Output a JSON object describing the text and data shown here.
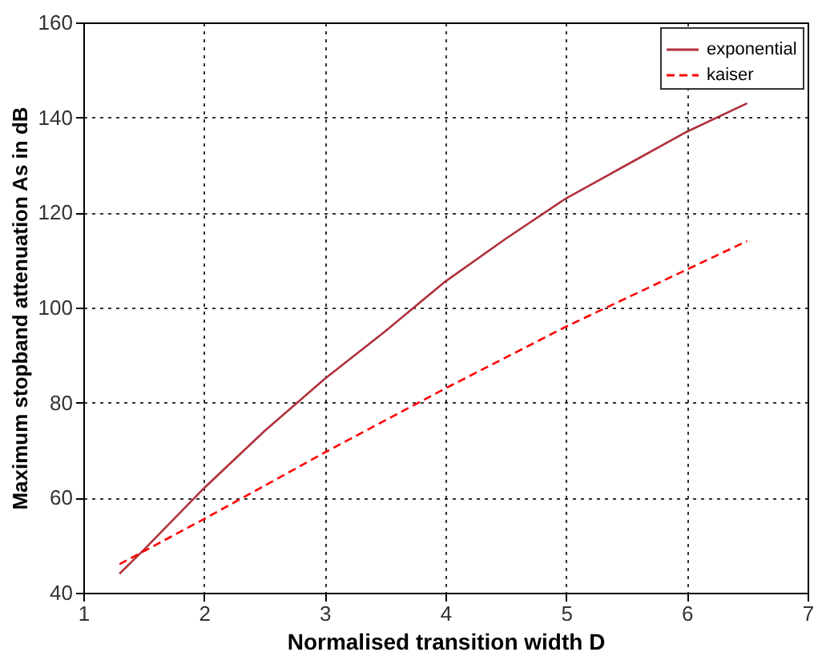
{
  "chart_data": {
    "type": "line",
    "xlabel": "Normalised transition width D",
    "ylabel": "Maximum stopband attenuation As in dB",
    "x": [
      1.3,
      1.5,
      2,
      2.5,
      3,
      3.5,
      4,
      4.5,
      5,
      5.5,
      6,
      6.5
    ],
    "series": [
      {
        "name": "exponential",
        "color": "#b0303c",
        "line_style": "solid",
        "values": [
          44,
          49,
          62,
          74,
          85,
          95,
          105.5,
          114.5,
          123,
          130,
          137,
          143
        ]
      },
      {
        "name": "kaiser",
        "color": "#ff0000",
        "line_style": "dashed",
        "x": [
          1.3,
          2,
          3,
          4,
          5,
          6,
          6.5
        ],
        "values": [
          46,
          55.5,
          69.5,
          83,
          96,
          108,
          114
        ]
      }
    ],
    "xlim": [
      1,
      7
    ],
    "xticks": [
      1,
      2,
      3,
      4,
      5,
      6,
      7
    ],
    "ylim": [
      40,
      160
    ],
    "yticks": [
      40,
      60,
      80,
      100,
      120,
      140,
      160
    ],
    "grid": true,
    "legend": "top right",
    "marker": "none"
  }
}
